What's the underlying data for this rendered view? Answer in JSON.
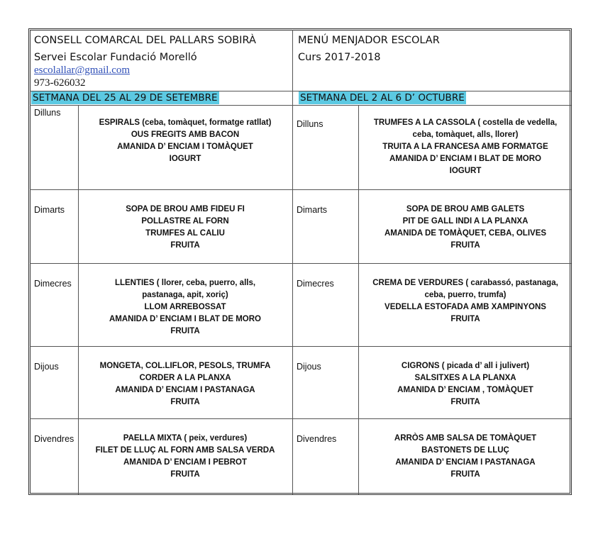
{
  "header": {
    "org": "CONSELL COMARCAL DEL PALLARS SOBIRÀ",
    "service": "Servei Escolar Fundació Morelló",
    "email": "escolallar@gmail.com",
    "phone": "973-626032",
    "title": "MENÚ MENJADOR ESCOLAR",
    "course": "Curs 2017-2018"
  },
  "colors": {
    "week_highlight": "#5cc9e2",
    "email_link": "#3050b8"
  },
  "weeks": [
    {
      "label": "SETMANA DEL 25 AL 29 DE SETEMBRE",
      "days": [
        {
          "day": "Dilluns",
          "lines": [
            "ESPIRALS (ceba, tomàquet, formatge ratllat)",
            "OUS FREGITS AMB BACON",
            "AMANIDA D’ ENCIAM I TOMÀQUET",
            "IOGURT"
          ]
        },
        {
          "day": "Dimarts",
          "lines": [
            "SOPA DE BROU AMB FIDEU FI",
            "POLLASTRE AL FORN",
            "TRUMFES AL CALIU",
            "FRUITA"
          ]
        },
        {
          "day": "Dimecres",
          "lines": [
            "LLENTIES ( llorer, ceba, puerro, alls,",
            "pastanaga, apit, xoriç)",
            "LLOM ARREBOSSAT",
            "AMANIDA D’ ENCIAM I BLAT DE MORO",
            "FRUITA"
          ]
        },
        {
          "day": "Dijous",
          "lines": [
            "MONGETA, COL.LIFLOR, PESOLS, TRUMFA",
            "CORDER A LA PLANXA",
            "AMANIDA D’ ENCIAM I PASTANAGA",
            "FRUITA"
          ]
        },
        {
          "day": "Divendres",
          "lines": [
            "PAELLA MIXTA ( peix, verdures)",
            "FILET DE LLUÇ AL FORN AMB SALSA VERDA",
            "AMANIDA D’ ENCIAM I PEBROT",
            "FRUITA"
          ]
        }
      ]
    },
    {
      "label": "SETMANA DEL 2 AL 6 D’ OCTUBRE",
      "days": [
        {
          "day": "Dilluns",
          "lines": [
            "TRUMFES A LA CASSOLA ( costella de vedella,",
            "ceba, tomàquet, alls, llorer)",
            "TRUITA A LA FRANCESA AMB FORMATGE",
            "AMANIDA D’ ENCIAM I BLAT DE MORO",
            "IOGURT"
          ]
        },
        {
          "day": "Dimarts",
          "lines": [
            "SOPA DE BROU AMB GALETS",
            "PIT DE GALL INDI A LA PLANXA",
            "AMANIDA DE TOMÀQUET, CEBA, OLIVES",
            "FRUITA"
          ]
        },
        {
          "day": "Dimecres",
          "lines": [
            "CREMA DE VERDURES ( carabassó, pastanaga,",
            "ceba, puerro, trumfa)",
            "VEDELLA ESTOFADA AMB XAMPINYONS",
            "FRUITA"
          ]
        },
        {
          "day": "Dijous",
          "lines": [
            "CIGRONS ( picada d’ all i julivert)",
            "SALSITXES A LA PLANXA",
            "AMANIDA D’ ENCIAM , TOMÀQUET",
            "FRUITA"
          ]
        },
        {
          "day": "Divendres",
          "lines": [
            "ARRÒS AMB SALSA DE TOMÀQUET",
            "BASTONETS DE LLUÇ",
            "AMANIDA D’ ENCIAM I PASTANAGA",
            "FRUITA"
          ]
        }
      ]
    }
  ]
}
